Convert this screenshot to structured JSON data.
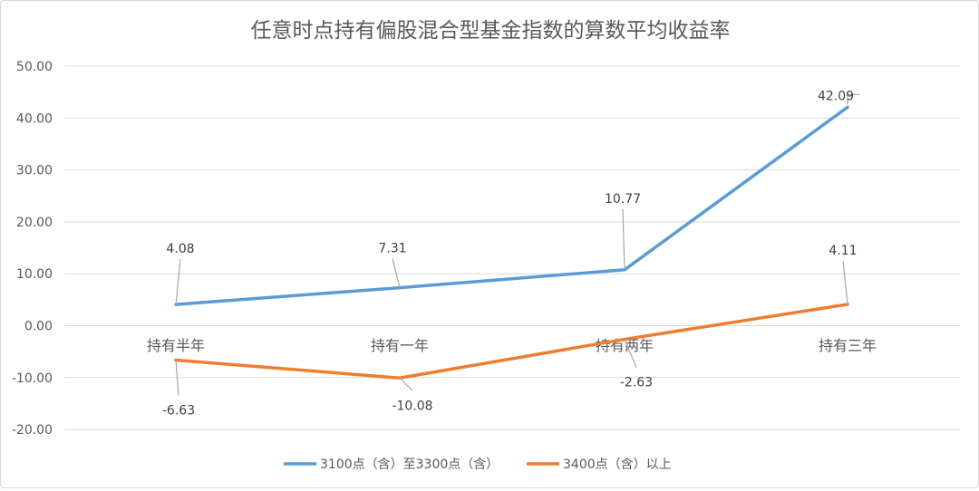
{
  "chart_data": {
    "type": "line",
    "title": "任意时点持有偏股混合型基金指数的算数平均收益率",
    "categories": [
      "持有半年",
      "持有一年",
      "持有两年",
      "持有三年"
    ],
    "series": [
      {
        "name": "3100点（含）至3300点（含）",
        "values": [
          4.08,
          7.31,
          10.77,
          42.09
        ],
        "labels": [
          "4.08",
          "7.31",
          "10.77",
          "42.09"
        ],
        "color": "#5B9BD5"
      },
      {
        "name": "3400点（含）以上",
        "values": [
          -6.63,
          -10.08,
          -2.63,
          4.11
        ],
        "labels": [
          "-6.63",
          "-10.08",
          "-2.63",
          "4.11"
        ],
        "color": "#ED7D31"
      }
    ],
    "y_ticks": [
      "50.00",
      "40.00",
      "30.00",
      "20.00",
      "10.00",
      "0.00",
      "-10.00",
      "-20.00"
    ],
    "ylim": [
      -20,
      50
    ],
    "grid": true,
    "legend_position": "bottom"
  }
}
